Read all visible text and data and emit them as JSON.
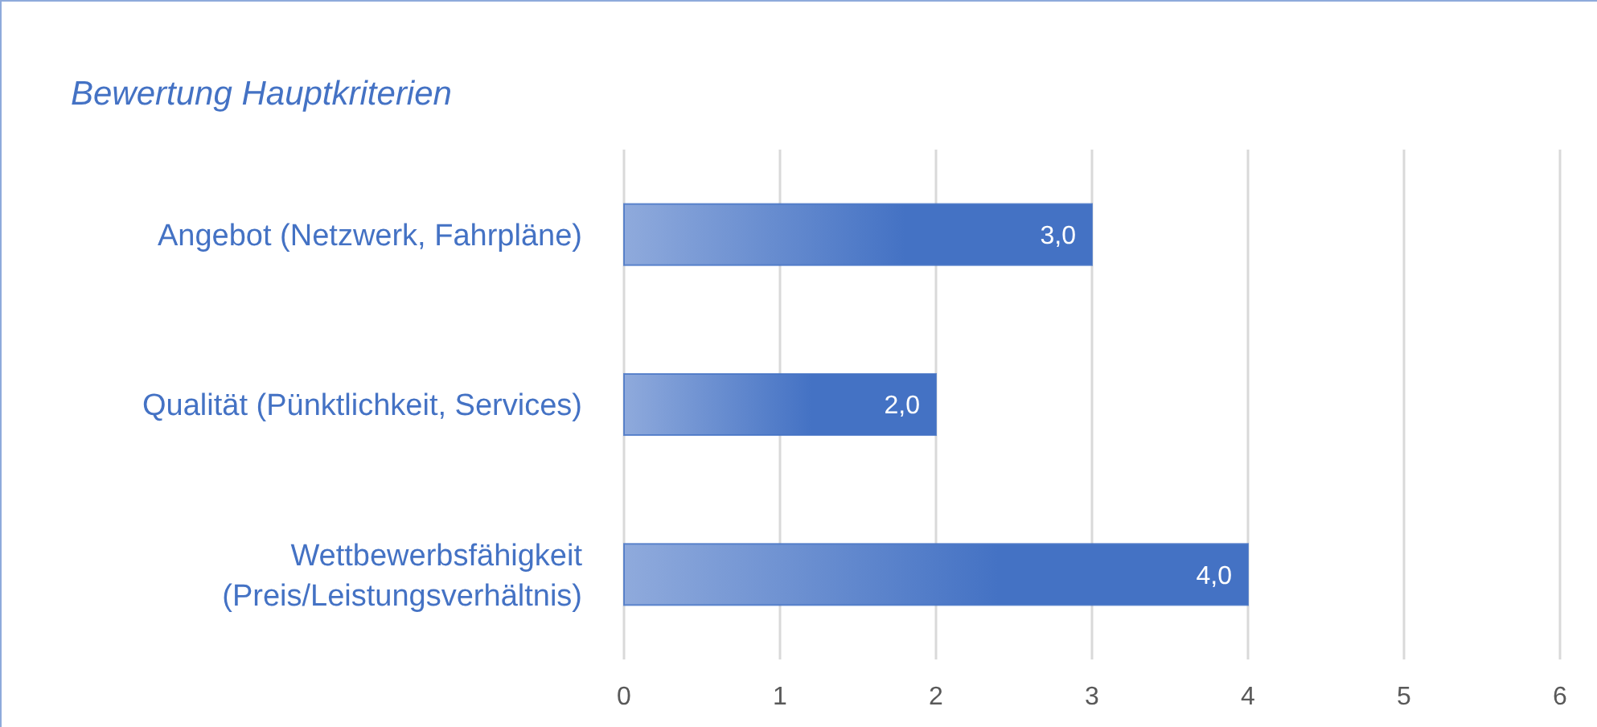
{
  "chart_data": {
    "type": "bar",
    "orientation": "horizontal",
    "title": "Bewertung Hauptkriterien",
    "categories": [
      "Angebot (Netzwerk, Fahrpläne)",
      "Qualität (Pünktlichkeit, Services)",
      "Wettbewerbsfähigkeit (Preis/Leistungsverhältnis)"
    ],
    "values": [
      3,
      2,
      4
    ],
    "value_labels": [
      "3,0",
      "2,0",
      "4,0"
    ],
    "color": "#4472c4",
    "xlim": [
      0,
      6
    ],
    "xticks": [
      0,
      1,
      2,
      3,
      4,
      5,
      6
    ],
    "grid": "x"
  }
}
